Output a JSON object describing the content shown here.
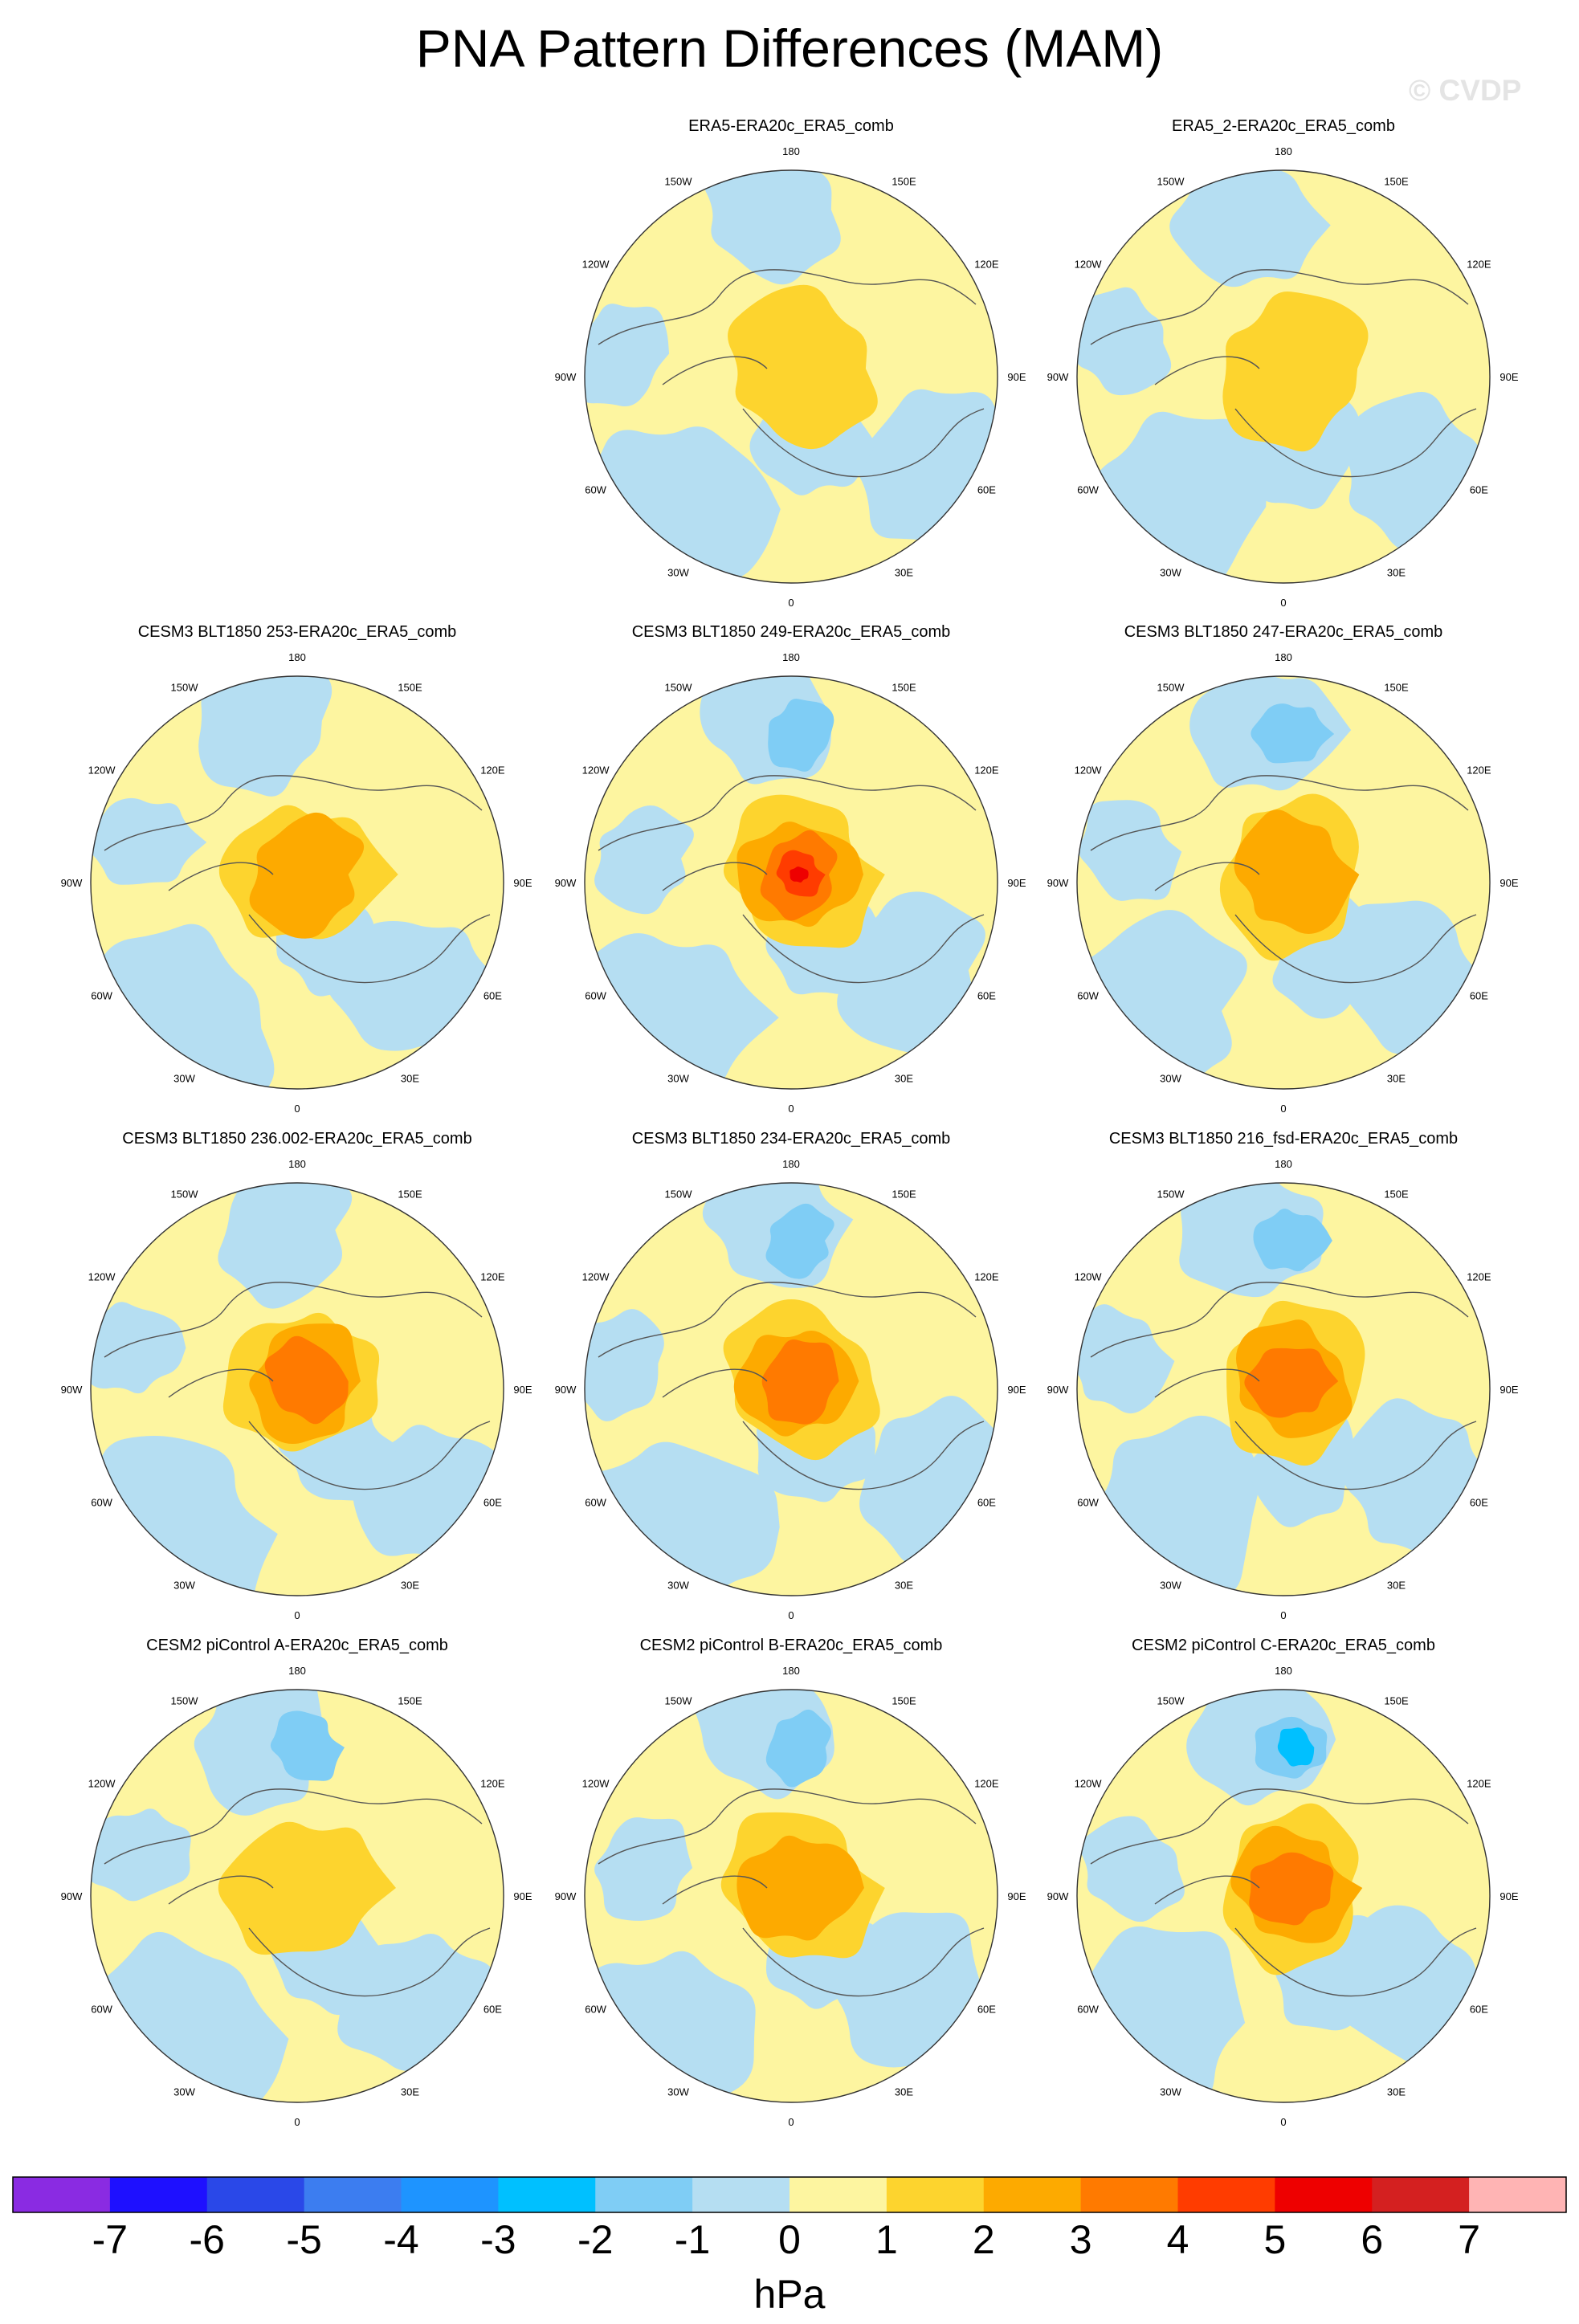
{
  "title": "PNA Pattern Differences (MAM)",
  "watermark": "© CVDP",
  "projection": "north polar stereographic",
  "lon_labels": [
    "180",
    "150W",
    "150E",
    "120W",
    "120E",
    "90W",
    "90E",
    "60W",
    "60E",
    "30W",
    "30E",
    "0"
  ],
  "panels": [
    {
      "title": "ERA5-ERA20c_ERA5_comb",
      "row": 0,
      "col": 1,
      "max_level": 1
    },
    {
      "title": "ERA5_2-ERA20c_ERA5_comb",
      "row": 0,
      "col": 2,
      "max_level": 1
    },
    {
      "title": "CESM3 BLT1850 253-ERA20c_ERA5_comb",
      "row": 1,
      "col": 0,
      "max_level": 2
    },
    {
      "title": "CESM3 BLT1850 249-ERA20c_ERA5_comb",
      "row": 1,
      "col": 1,
      "max_level": 5
    },
    {
      "title": "CESM3 BLT1850 247-ERA20c_ERA5_comb",
      "row": 1,
      "col": 2,
      "max_level": 2
    },
    {
      "title": "CESM3 BLT1850 236.002-ERA20c_ERA5_comb",
      "row": 2,
      "col": 0,
      "max_level": 3
    },
    {
      "title": "CESM3 BLT1850 234-ERA20c_ERA5_comb",
      "row": 2,
      "col": 1,
      "max_level": 3
    },
    {
      "title": "CESM3 BLT1850 216_fsd-ERA20c_ERA5_comb",
      "row": 2,
      "col": 2,
      "max_level": 3
    },
    {
      "title": "CESM2 piControl A-ERA20c_ERA5_comb",
      "row": 3,
      "col": 0,
      "max_level": 1
    },
    {
      "title": "CESM2 piControl B-ERA20c_ERA5_comb",
      "row": 3,
      "col": 1,
      "max_level": 2
    },
    {
      "title": "CESM2 piControl C-ERA20c_ERA5_comb",
      "row": 3,
      "col": 2,
      "max_level": 3
    }
  ],
  "colorbar": {
    "unit": "hPa",
    "labels": [
      "-7",
      "-6",
      "-5",
      "-4",
      "-3",
      "-2",
      "-1",
      "0",
      "1",
      "2",
      "3",
      "4",
      "5",
      "6",
      "7"
    ],
    "colors": [
      "#8a2be2",
      "#1e10ff",
      "#2a48e8",
      "#3c7df0",
      "#1e94ff",
      "#00c0ff",
      "#7fcdf5",
      "#b5def2",
      "#fdf5a0",
      "#fdd42e",
      "#fdaa00",
      "#ff7a00",
      "#ff3c00",
      "#ee0000",
      "#d42020",
      "#ffb4b4"
    ]
  }
}
